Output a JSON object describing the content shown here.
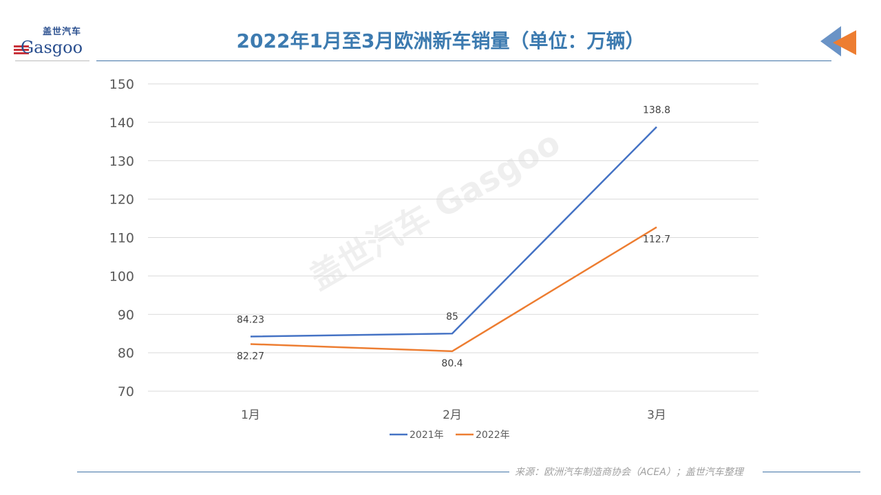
{
  "header": {
    "title": "2022年1月至3月欧洲新车销量（单位：万辆）",
    "logo_cn": "盖世汽车",
    "logo_en": "Gasgoo"
  },
  "footer": {
    "source": "来源：欧洲汽车制造商协会（ACEA）；盖世汽车整理"
  },
  "watermark": "盖世汽车 Gasgoo",
  "colors": {
    "title": "#3d7bb0",
    "series_2021": "#4472c4",
    "series_2022": "#ed7d31",
    "accent_arrow_blue": "#6a93c6",
    "accent_arrow_orange": "#ed7d31"
  },
  "chart_data": {
    "type": "line",
    "title": "2022年1月至3月欧洲新车销量（单位：万辆）",
    "categories": [
      "1月",
      "2月",
      "3月"
    ],
    "series": [
      {
        "name": "2021年",
        "values": [
          84.23,
          85,
          138.8
        ],
        "labels": [
          "84.23",
          "85",
          "138.8"
        ]
      },
      {
        "name": "2022年",
        "values": [
          82.27,
          80.4,
          112.7
        ],
        "labels": [
          "82.27",
          "80.4",
          "112.7"
        ]
      }
    ],
    "ylim": [
      70,
      150
    ],
    "yticks": [
      "70",
      "80",
      "90",
      "100",
      "110",
      "120",
      "130",
      "140",
      "150"
    ],
    "grid": true,
    "legend": "bottom"
  }
}
